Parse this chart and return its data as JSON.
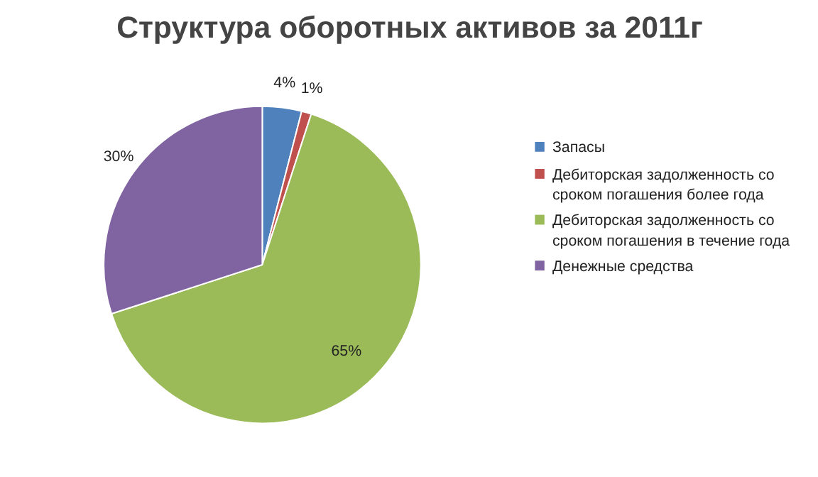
{
  "chart_data": {
    "type": "pie",
    "title": "Структура оборотных активов за 2011г",
    "categories": [
      "Запасы",
      "Дебиторская задолженность со сроком погашения более года",
      "Дебиторская задолженность со сроком погашения в течение года",
      "Денежные средства"
    ],
    "values": [
      4,
      1,
      65,
      30
    ],
    "colors": [
      "#4f81bd",
      "#c0504d",
      "#9bbb59",
      "#8064a2"
    ],
    "value_labels": [
      "4%",
      "1%",
      "65%",
      "30%"
    ],
    "legend": "right"
  }
}
